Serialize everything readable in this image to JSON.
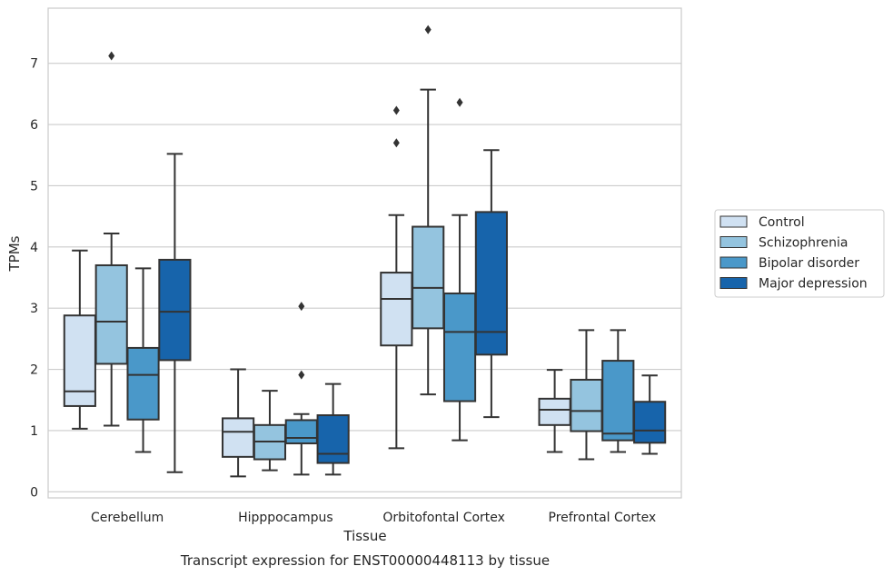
{
  "caption": "Transcript expression for ENST00000448113 by tissue",
  "chart_data": {
    "type": "boxplot",
    "xlabel": "Tissue",
    "ylabel": "TPMs",
    "ylim": [
      -0.1,
      7.9
    ],
    "yticks": [
      0,
      1,
      2,
      3,
      4,
      5,
      6,
      7
    ],
    "grid": "horizontal",
    "legend_position": "right",
    "categories": [
      "Cerebellum",
      "Hipppocampus",
      "Orbitofontal Cortex",
      "Prefrontal Cortex"
    ],
    "series": [
      {
        "name": "Control",
        "color": "#d0e1f2",
        "boxes": [
          {
            "whislo": 1.03,
            "q1": 1.4,
            "med": 1.64,
            "q3": 2.88,
            "whishi": 3.94,
            "fliers": []
          },
          {
            "whislo": 0.25,
            "q1": 0.57,
            "med": 0.98,
            "q3": 1.2,
            "whishi": 2.0,
            "fliers": []
          },
          {
            "whislo": 0.71,
            "q1": 2.39,
            "med": 3.15,
            "q3": 3.58,
            "whishi": 4.52,
            "fliers": [
              5.7,
              6.23
            ]
          },
          {
            "whislo": 0.65,
            "q1": 1.09,
            "med": 1.34,
            "q3": 1.52,
            "whishi": 1.99,
            "fliers": []
          }
        ]
      },
      {
        "name": "Schizophrenia",
        "color": "#94c4df",
        "boxes": [
          {
            "whislo": 1.08,
            "q1": 2.09,
            "med": 2.78,
            "q3": 3.7,
            "whishi": 4.22,
            "fliers": [
              7.12
            ]
          },
          {
            "whislo": 0.35,
            "q1": 0.53,
            "med": 0.82,
            "q3": 1.09,
            "whishi": 1.65,
            "fliers": []
          },
          {
            "whislo": 1.59,
            "q1": 2.67,
            "med": 3.33,
            "q3": 4.33,
            "whishi": 6.57,
            "fliers": [
              7.55
            ]
          },
          {
            "whislo": 0.53,
            "q1": 0.99,
            "med": 1.32,
            "q3": 1.83,
            "whishi": 2.64,
            "fliers": []
          }
        ]
      },
      {
        "name": "Bipolar disorder",
        "color": "#4a98c9",
        "boxes": [
          {
            "whislo": 0.65,
            "q1": 1.18,
            "med": 1.91,
            "q3": 2.35,
            "whishi": 3.65,
            "fliers": []
          },
          {
            "whislo": 0.28,
            "q1": 0.79,
            "med": 0.88,
            "q3": 1.17,
            "whishi": 1.27,
            "fliers": [
              1.91,
              3.03
            ]
          },
          {
            "whislo": 0.84,
            "q1": 1.48,
            "med": 2.61,
            "q3": 3.24,
            "whishi": 4.52,
            "fliers": [
              6.36
            ]
          },
          {
            "whislo": 0.65,
            "q1": 0.84,
            "med": 0.95,
            "q3": 2.14,
            "whishi": 2.64,
            "fliers": []
          }
        ]
      },
      {
        "name": "Major depression",
        "color": "#1764ab",
        "boxes": [
          {
            "whislo": 0.32,
            "q1": 2.15,
            "med": 2.94,
            "q3": 3.79,
            "whishi": 5.52,
            "fliers": []
          },
          {
            "whislo": 0.28,
            "q1": 0.47,
            "med": 0.62,
            "q3": 1.25,
            "whishi": 1.76,
            "fliers": []
          },
          {
            "whislo": 1.22,
            "q1": 2.24,
            "med": 2.61,
            "q3": 4.57,
            "whishi": 5.58,
            "fliers": []
          },
          {
            "whislo": 0.62,
            "q1": 0.8,
            "med": 1.0,
            "q3": 1.47,
            "whishi": 1.9,
            "fliers": []
          }
        ]
      }
    ]
  }
}
